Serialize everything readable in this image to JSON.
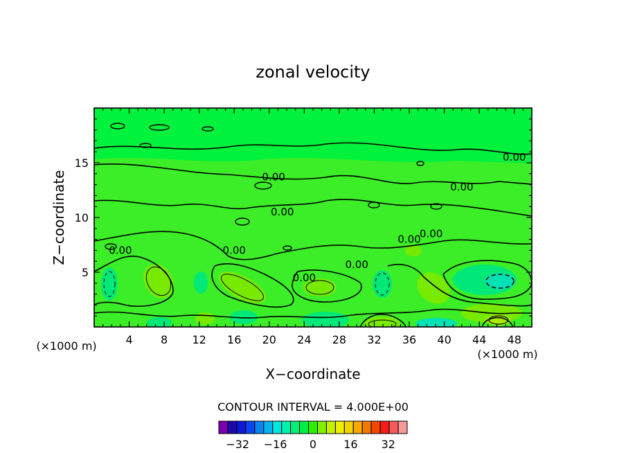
{
  "chart_data": {
    "type": "contour",
    "title": "zonal velocity",
    "xlabel": "X−coordinate",
    "ylabel": "Z−coordinate",
    "x_units": "(×1000 m)",
    "xlim": [
      0,
      50
    ],
    "ylim": [
      0,
      20
    ],
    "x_ticks": [
      4,
      8,
      12,
      16,
      20,
      24,
      28,
      32,
      36,
      40,
      44,
      48
    ],
    "y_ticks": [
      5,
      10,
      15
    ],
    "contour_interval_label": "CONTOUR INTERVAL = 4.000E+00",
    "contour_labels": [
      {
        "text": "0.00",
        "x": 48,
        "y": 15.5
      },
      {
        "text": "0.00",
        "x": 20.5,
        "y": 13.7
      },
      {
        "text": "0.00",
        "x": 42,
        "y": 12.8
      },
      {
        "text": "0.00",
        "x": 21.5,
        "y": 10.5
      },
      {
        "text": "0.00",
        "x": 38.5,
        "y": 8.5
      },
      {
        "text": "0.00",
        "x": 36,
        "y": 8
      },
      {
        "text": "0.00",
        "x": 3,
        "y": 7
      },
      {
        "text": "0.00",
        "x": 16,
        "y": 7
      },
      {
        "text": "0.00",
        "x": 30,
        "y": 5.7
      },
      {
        "text": "0.00",
        "x": 24,
        "y": 4.5
      }
    ],
    "colorbar": {
      "tick_labels": [
        "−32",
        "−16",
        "0",
        "16",
        "32"
      ],
      "tick_values": [
        -32,
        -16,
        0,
        16,
        32
      ],
      "range": [
        -40,
        40
      ],
      "colors": [
        "#7a00b0",
        "#1c0aa8",
        "#0f18d8",
        "#0c46f0",
        "#0a82f0",
        "#04b6f0",
        "#00e6e0",
        "#00f2b0",
        "#00f27a",
        "#00ee46",
        "#2cf000",
        "#82f000",
        "#c4f000",
        "#eef000",
        "#f2d200",
        "#f4aa00",
        "#f47800",
        "#f44800",
        "#f41c1c",
        "#f45c5c",
        "#f49898"
      ]
    },
    "field_colors": {
      "base": "#00f23c",
      "light": "#3cee28",
      "bright": "#78ea00",
      "teal": "#00e878",
      "cyan": "#00e2b4"
    }
  }
}
